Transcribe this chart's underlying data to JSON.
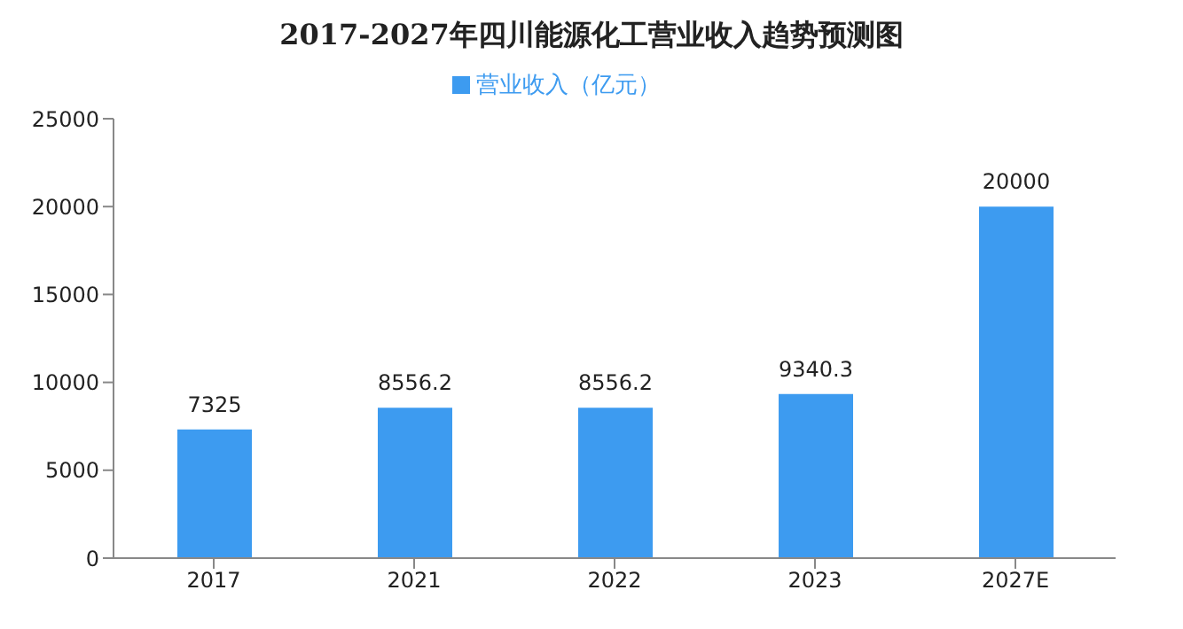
{
  "chart_data": {
    "type": "bar",
    "title": "2017-2027年四川能源化工营业收入趋势预测图",
    "categories": [
      "2017",
      "2021",
      "2022",
      "2023",
      "2027E"
    ],
    "series": [
      {
        "name": "营业收入（亿元）",
        "color": "#3d9bf0",
        "values": [
          7325,
          8556.2,
          8556.2,
          9340.3,
          20000
        ]
      }
    ],
    "ylim": [
      0,
      25000
    ],
    "yticks": [
      0,
      5000,
      10000,
      15000,
      20000,
      25000
    ],
    "data_labels": true,
    "legend": "top",
    "grid": false
  }
}
